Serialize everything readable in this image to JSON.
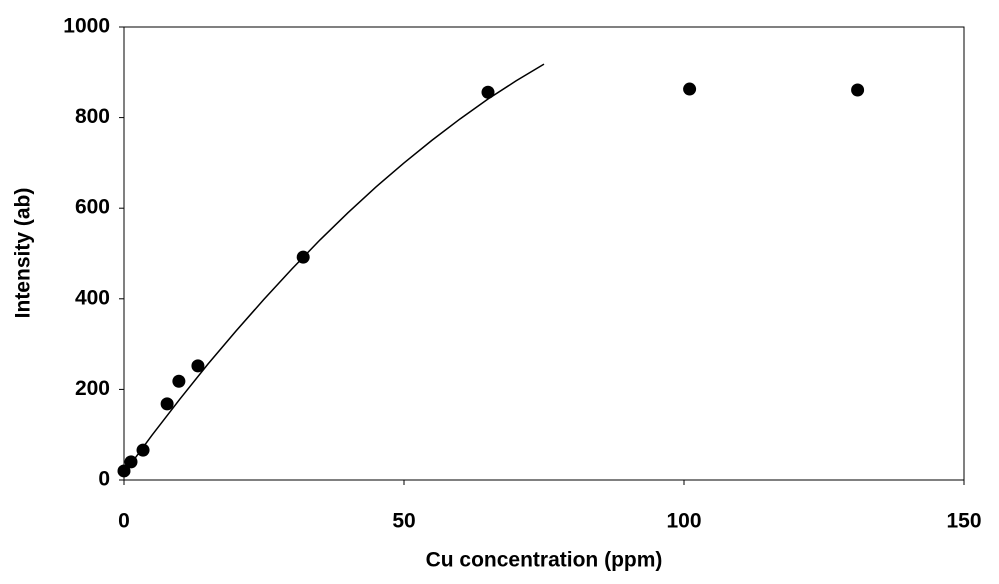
{
  "chart_data": {
    "type": "scatter",
    "xlabel": "Cu concentration (ppm)",
    "ylabel": "Intensity (ab)",
    "xlim": [
      0,
      150
    ],
    "xticks": [
      0,
      50,
      100,
      150
    ],
    "ylim": [
      0,
      1000
    ],
    "yticks": [
      0,
      200,
      400,
      600,
      800,
      1000
    ],
    "series": [
      {
        "type": "scatter",
        "color": "#000000",
        "x": [
          0,
          1.25,
          3.4,
          7.7,
          9.8,
          13.2,
          32,
          65,
          101,
          131
        ],
        "values": [
          20,
          40,
          66,
          168,
          218,
          252,
          492,
          856,
          863,
          861
        ]
      },
      {
        "type": "line",
        "color": "#000000",
        "x": [
          0,
          5,
          10,
          15,
          20,
          25,
          30,
          35,
          40,
          45,
          50,
          55,
          60,
          65,
          70,
          75
        ],
        "values": [
          15,
          99,
          179,
          256,
          329,
          399,
          466,
          530,
          590,
          647,
          700,
          750,
          797,
          841,
          881,
          918
        ]
      }
    ]
  }
}
